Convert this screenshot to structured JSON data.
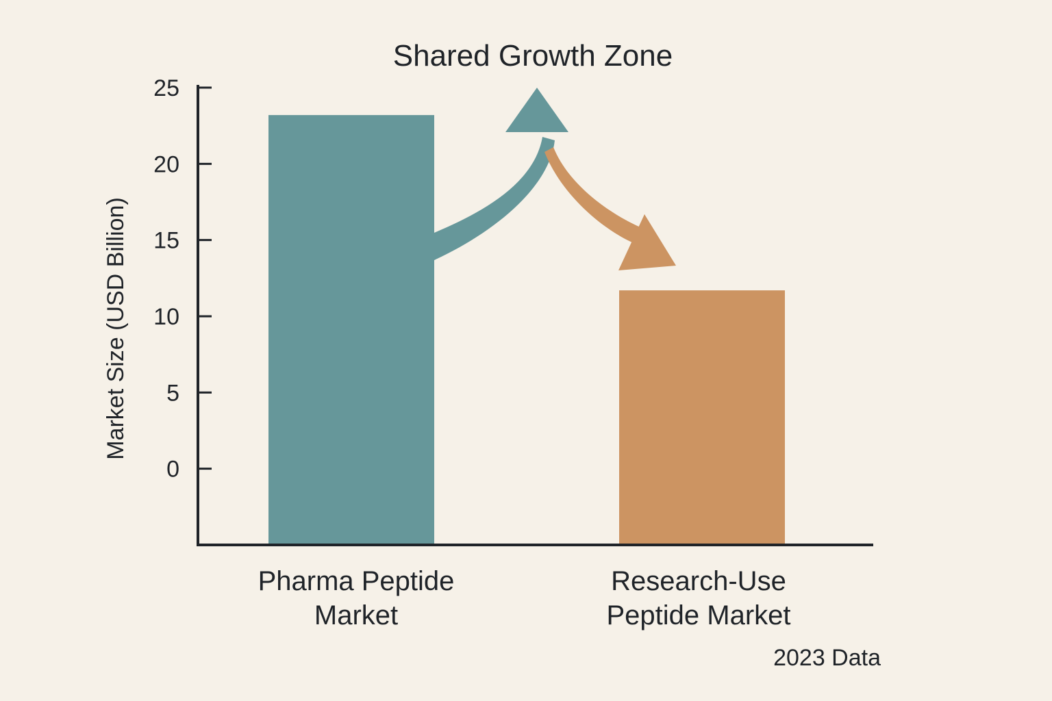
{
  "chart_data": {
    "type": "bar",
    "title": "Shared Growth Zone",
    "ylabel": "Market Size (USD Billion)",
    "xlabel": "",
    "ylim": [
      -5,
      25
    ],
    "yticks": [
      0,
      5,
      10,
      15,
      20,
      25
    ],
    "categories": [
      [
        "Pharma Peptide",
        "Market"
      ],
      [
        "Research-Use",
        "Peptide Market"
      ]
    ],
    "values": [
      23.2,
      11.7
    ],
    "colors": [
      "#66979a",
      "#cc9462"
    ],
    "annotation": "2023 Data",
    "grid": false,
    "legend": "none"
  }
}
